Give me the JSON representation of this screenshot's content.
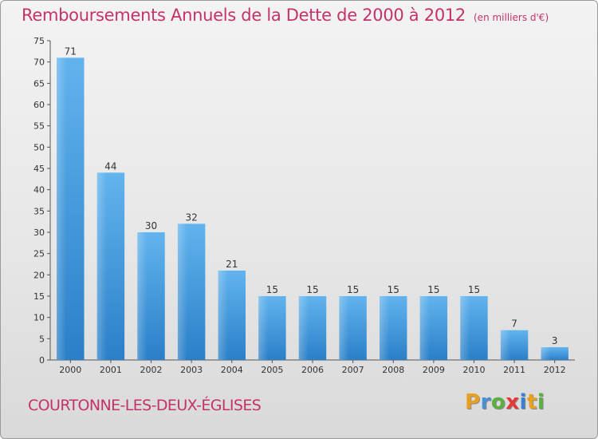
{
  "header": {
    "title": "Remboursements Annuels de la Dette de 2000 à 2012",
    "subtitle": "(en milliers d'€)"
  },
  "footer": {
    "commune": "COURTONNE-LES-DEUX-ÉGLISES",
    "brand_letters": [
      "P",
      "r",
      "o",
      "x",
      "i",
      "t",
      "i"
    ],
    "brand_colors": [
      "#e8a020",
      "#4a8fd0",
      "#5cb040",
      "#e23a3a",
      "#3a80d0",
      "#e8a020",
      "#5cb040"
    ]
  },
  "chart_data": {
    "type": "bar",
    "categories": [
      "2000",
      "2001",
      "2002",
      "2003",
      "2004",
      "2005",
      "2006",
      "2007",
      "2008",
      "2009",
      "2010",
      "2011",
      "2012"
    ],
    "values": [
      71,
      44,
      30,
      32,
      21,
      15,
      15,
      15,
      15,
      15,
      15,
      7,
      3
    ],
    "ylim": [
      0,
      75
    ],
    "yticks": [
      0,
      5,
      10,
      15,
      20,
      25,
      30,
      35,
      40,
      45,
      50,
      55,
      60,
      65,
      70,
      75
    ],
    "grid": false,
    "bar_color": "#4a9fe0"
  }
}
